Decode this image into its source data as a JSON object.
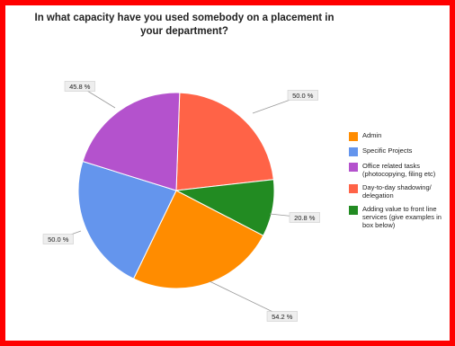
{
  "chart_data": {
    "type": "pie",
    "title": "In what capacity have you used somebody on a placement in your department?",
    "categories": [
      "Admin",
      "Specific Projects",
      "Office related tasks (photocopying, filing etc)",
      "Day-to-day shadowing/ delegation",
      "Adding value to front line services (give examples in box below)"
    ],
    "values": [
      54.2,
      50.0,
      45.8,
      50.0,
      20.8
    ],
    "data_labels": [
      "54.2 %",
      "50.0 %",
      "45.8 %",
      "50.0 %",
      "20.8 %"
    ],
    "colors": [
      "#ff8c00",
      "#6495ed",
      "#b452cd",
      "#ff6347",
      "#228b22"
    ],
    "legend_position": "right"
  }
}
